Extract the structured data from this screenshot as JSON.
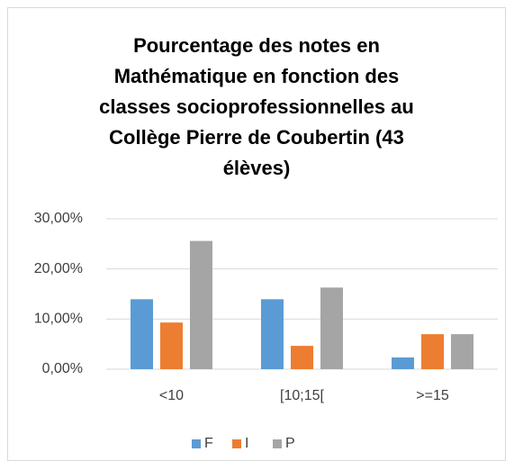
{
  "chart_data": {
    "type": "bar",
    "title": "Pourcentage des notes en Mathématique en fonction des classes socioprofessionnelles au Collège Pierre de Coubertin (43 élèves)",
    "categories": [
      "<10",
      "[10;15[",
      ">=15"
    ],
    "series": [
      {
        "name": "F",
        "color": "#5b9bd5",
        "values": [
          13.95,
          13.95,
          2.33
        ]
      },
      {
        "name": "I",
        "color": "#ed7d31",
        "values": [
          9.3,
          4.65,
          6.98
        ]
      },
      {
        "name": "P",
        "color": "#a5a5a5",
        "values": [
          25.58,
          16.28,
          6.98
        ]
      }
    ],
    "ylim": [
      0,
      30
    ],
    "yticks": [
      {
        "value": 0,
        "label": "0,00%"
      },
      {
        "value": 10,
        "label": "10,00%"
      },
      {
        "value": 20,
        "label": "20,00%"
      },
      {
        "value": 30,
        "label": "30,00%"
      }
    ],
    "grid": true,
    "legend": "bottom"
  }
}
